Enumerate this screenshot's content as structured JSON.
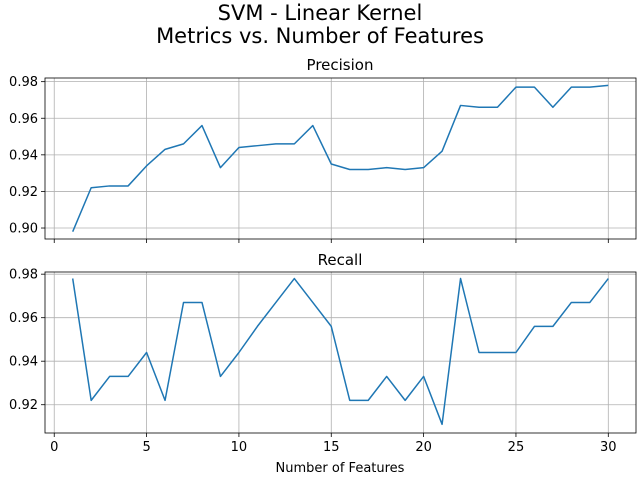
{
  "figure": {
    "title_line1": "SVM - Linear Kernel",
    "title_line2": "Metrics vs. Number of Features"
  },
  "colors": {
    "series": "#1f77b4",
    "grid": "#b0b0b0",
    "axes": "#000000"
  },
  "chart_data": [
    {
      "type": "line",
      "title": "Precision",
      "xlabel": "",
      "ylabel": "",
      "grid": true,
      "shared_x_with": "Recall",
      "xlim": [
        -0.5,
        31.5
      ],
      "ylim": [
        0.894,
        0.982
      ],
      "xticks": [
        0,
        5,
        10,
        15,
        20,
        25,
        30
      ],
      "yticks": [
        0.9,
        0.92,
        0.94,
        0.96,
        0.98
      ],
      "ytick_labels": [
        "0.90",
        "0.92",
        "0.94",
        "0.96",
        "0.98"
      ],
      "x": [
        1,
        2,
        3,
        4,
        5,
        6,
        7,
        8,
        9,
        10,
        11,
        12,
        13,
        14,
        15,
        16,
        17,
        18,
        19,
        20,
        21,
        22,
        23,
        24,
        25,
        26,
        27,
        28,
        29,
        30
      ],
      "series": [
        {
          "values": [
            0.898,
            0.922,
            0.923,
            0.923,
            0.934,
            0.943,
            0.946,
            0.956,
            0.933,
            0.944,
            0.945,
            0.946,
            0.946,
            0.956,
            0.935,
            0.932,
            0.932,
            0.933,
            0.932,
            0.933,
            0.942,
            0.967,
            0.966,
            0.966,
            0.977,
            0.977,
            0.966,
            0.977,
            0.977,
            0.978
          ]
        }
      ]
    },
    {
      "type": "line",
      "title": "Recall",
      "xlabel": "Number of Features",
      "ylabel": "",
      "grid": true,
      "xlim": [
        -0.5,
        31.5
      ],
      "ylim": [
        0.907,
        0.981
      ],
      "xticks": [
        0,
        5,
        10,
        15,
        20,
        25,
        30
      ],
      "xtick_labels": [
        "0",
        "5",
        "10",
        "15",
        "20",
        "25",
        "30"
      ],
      "yticks": [
        0.92,
        0.94,
        0.96,
        0.98
      ],
      "ytick_labels": [
        "0.92",
        "0.94",
        "0.96",
        "0.98"
      ],
      "x": [
        1,
        2,
        3,
        4,
        5,
        6,
        7,
        8,
        9,
        10,
        11,
        12,
        13,
        14,
        15,
        16,
        17,
        18,
        19,
        20,
        21,
        22,
        23,
        24,
        25,
        26,
        27,
        28,
        29,
        30
      ],
      "series": [
        {
          "values": [
            0.978,
            0.922,
            0.933,
            0.933,
            0.944,
            0.922,
            0.967,
            0.967,
            0.933,
            0.944,
            0.956,
            0.967,
            0.978,
            0.967,
            0.956,
            0.922,
            0.922,
            0.933,
            0.922,
            0.933,
            0.911,
            0.978,
            0.944,
            0.944,
            0.944,
            0.956,
            0.956,
            0.967,
            0.967,
            0.978
          ]
        }
      ]
    }
  ]
}
